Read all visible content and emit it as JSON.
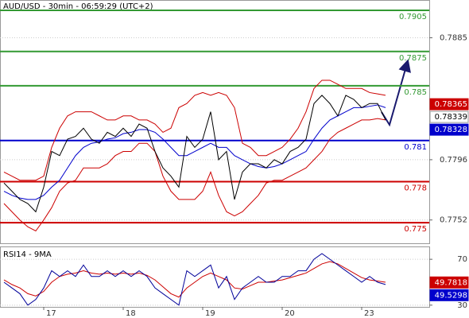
{
  "chart_data": [
    {
      "type": "line",
      "title": "AUD/USD - 30min - 06:59:29 (UTC+2)",
      "ylim": [
        0.7735,
        0.7912
      ],
      "yticks": [
        0.7885,
        0.7796,
        0.7752
      ],
      "grid": true,
      "series": [
        {
          "color": "#cc0000",
          "values": [
            0.7787,
            0.7784,
            0.7781,
            0.7781,
            0.7781,
            0.7784,
            0.7805,
            0.7819,
            0.7828,
            0.7831,
            0.7831,
            0.7831,
            0.7828,
            0.7825,
            0.7825,
            0.7828,
            0.7828,
            0.7825,
            0.7825,
            0.7822,
            0.7816,
            0.7819,
            0.7834,
            0.7837,
            0.7843,
            0.7845,
            0.7843,
            0.7845,
            0.7843,
            0.7834,
            0.7808,
            0.7805,
            0.7799,
            0.7799,
            0.7802,
            0.7805,
            0.7811,
            0.7819,
            0.7831,
            0.7848,
            0.7854,
            0.7854,
            0.7851,
            0.7848,
            0.7848,
            0.7848,
            0.7845,
            0.7844,
            0.7843
          ]
        },
        {
          "color": "#cc0000",
          "values": [
            0.7764,
            0.7758,
            0.7752,
            0.7747,
            0.7744,
            0.7752,
            0.7761,
            0.7773,
            0.7779,
            0.7781,
            0.779,
            0.779,
            0.779,
            0.7793,
            0.7799,
            0.7802,
            0.7802,
            0.7808,
            0.7808,
            0.7802,
            0.7784,
            0.7773,
            0.7767,
            0.7767,
            0.7767,
            0.7773,
            0.7787,
            0.777,
            0.7758,
            0.7755,
            0.7758,
            0.7764,
            0.777,
            0.7779,
            0.7781,
            0.7781,
            0.7784,
            0.7787,
            0.779,
            0.7796,
            0.7802,
            0.7811,
            0.7816,
            0.7819,
            0.7822,
            0.7825,
            0.7825,
            0.7826,
            0.7825
          ]
        },
        {
          "color": "#0000cc",
          "values": [
            0.7773,
            0.777,
            0.7768,
            0.7767,
            0.7767,
            0.777,
            0.7776,
            0.7781,
            0.779,
            0.7799,
            0.7805,
            0.7808,
            0.7809,
            0.7811,
            0.7812,
            0.7815,
            0.7816,
            0.7818,
            0.7818,
            0.7816,
            0.7811,
            0.7805,
            0.7799,
            0.7799,
            0.7802,
            0.7805,
            0.7808,
            0.7805,
            0.7805,
            0.7799,
            0.7796,
            0.7793,
            0.7791,
            0.779,
            0.7791,
            0.7793,
            0.7796,
            0.7799,
            0.7802,
            0.7811,
            0.7819,
            0.7825,
            0.7828,
            0.7831,
            0.7834,
            0.7834,
            0.7835,
            0.7836,
            0.7834
          ]
        },
        {
          "color": "#000000",
          "values": [
            0.7779,
            0.7773,
            0.7767,
            0.7764,
            0.7758,
            0.7776,
            0.7802,
            0.7799,
            0.7811,
            0.7813,
            0.7819,
            0.7811,
            0.7808,
            0.7816,
            0.7813,
            0.7819,
            0.7813,
            0.7822,
            0.7819,
            0.7802,
            0.779,
            0.7784,
            0.7776,
            0.7813,
            0.7805,
            0.7811,
            0.7831,
            0.7796,
            0.7802,
            0.7767,
            0.7787,
            0.7793,
            0.7793,
            0.779,
            0.7796,
            0.7793,
            0.7802,
            0.7805,
            0.7811,
            0.7837,
            0.7843,
            0.7837,
            0.7828,
            0.7843,
            0.784,
            0.7834,
            0.7837,
            0.7837,
            0.7825
          ]
        }
      ],
      "levels": [
        {
          "value": 0.7905,
          "color": "#339933"
        },
        {
          "value": 0.7875,
          "color": "#339933"
        },
        {
          "value": 0.785,
          "color": "#339933"
        },
        {
          "value": 0.781,
          "color": "#0000cc"
        },
        {
          "value": 0.778,
          "color": "#cc0000"
        },
        {
          "value": 0.775,
          "color": "#cc0000"
        }
      ],
      "price_labels": [
        {
          "value": 0.78365,
          "color": "#cc0000"
        },
        {
          "value": 0.78339,
          "color": "#ffffff"
        },
        {
          "value": 0.78328,
          "color": "#0000cc"
        }
      ]
    },
    {
      "type": "line",
      "title": "RSI14 - 9MA",
      "categories": [
        null,
        null,
        null,
        null,
        null,
        "17",
        null,
        null,
        null,
        null,
        null,
        null,
        null,
        null,
        null,
        "18",
        null,
        null,
        null,
        null,
        null,
        null,
        null,
        null,
        null,
        "19",
        null,
        null,
        null,
        null,
        null,
        null,
        null,
        null,
        null,
        "20",
        null,
        null,
        null,
        null,
        null,
        null,
        null,
        null,
        null,
        "23",
        null,
        null,
        null
      ],
      "ylim": [
        28.5,
        80.5
      ],
      "yticks": [
        70,
        30
      ],
      "series": [
        {
          "color": "#cc0000",
          "values": [
            52,
            48,
            45,
            40,
            38,
            42,
            50,
            55,
            57,
            58,
            60,
            58,
            57,
            58,
            57,
            58,
            57,
            58,
            56,
            52,
            46,
            40,
            37,
            45,
            50,
            55,
            58,
            55,
            52,
            45,
            44,
            47,
            50,
            50,
            51,
            52,
            54,
            56,
            58,
            62,
            66,
            68,
            66,
            62,
            58,
            54,
            52,
            51,
            50
          ]
        },
        {
          "color": "#000099",
          "values": [
            50,
            45,
            40,
            30,
            35,
            45,
            60,
            55,
            60,
            55,
            65,
            55,
            55,
            60,
            55,
            60,
            55,
            60,
            55,
            45,
            40,
            35,
            30,
            60,
            55,
            60,
            65,
            45,
            55,
            35,
            45,
            50,
            55,
            50,
            50,
            55,
            55,
            60,
            60,
            70,
            75,
            70,
            65,
            60,
            55,
            50,
            55,
            50,
            48
          ]
        }
      ],
      "price_labels": [
        {
          "value": 49.7818,
          "color": "#cc0000"
        },
        {
          "value": 49.5298,
          "color": "#0000cc"
        }
      ]
    }
  ]
}
